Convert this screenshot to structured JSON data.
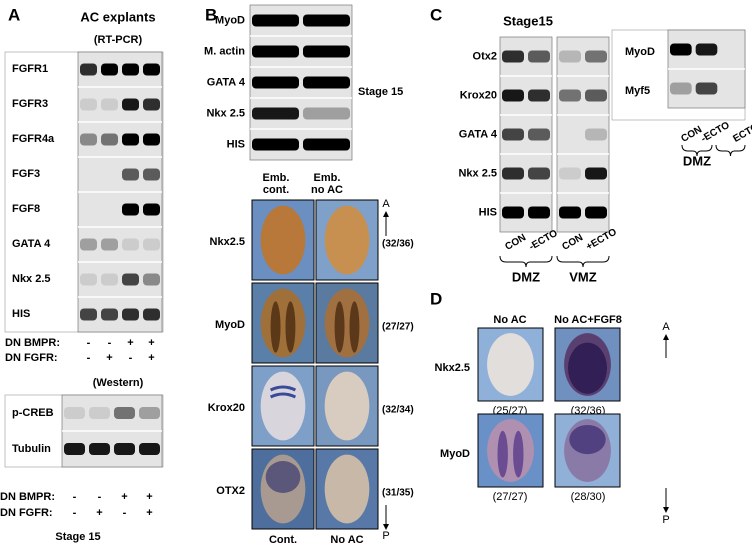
{
  "panel_a": {
    "label": "A",
    "title": "AC explants",
    "subtitle": "(RT-PCR)",
    "genes": [
      "FGFR1",
      "FGFR3",
      "FGFR4a",
      "FGF3",
      "FGF8",
      "GATA 4",
      "Nkx 2.5",
      "HIS"
    ],
    "conditions": [
      {
        "name": "DN BMPR:",
        "signs": [
          "-",
          "-",
          "+",
          "+"
        ]
      },
      {
        "name": "DN FGFR:",
        "signs": [
          "-",
          "+",
          "-",
          "+"
        ]
      }
    ],
    "western": {
      "title": "(Western)",
      "proteins": [
        "p-CREB",
        "Tubulin"
      ],
      "conditions": [
        {
          "name": "DN BMPR:",
          "signs": [
            "-",
            "-",
            "+",
            "+"
          ]
        },
        {
          "name": "DN FGFR:",
          "signs": [
            "-",
            "+",
            "-",
            "+"
          ]
        }
      ],
      "stage": "Stage 15"
    }
  },
  "panel_b": {
    "label": "B",
    "genes": [
      "MyoD",
      "M. actin",
      "GATA 4",
      "Nkx 2.5",
      "HIS"
    ],
    "stage": "Stage 15",
    "lanes": [
      [
        "Emb.",
        "cont."
      ],
      [
        "Emb.",
        "no AC"
      ]
    ],
    "embryo_rows": [
      {
        "gene": "Nkx2.5",
        "ratio": "(32/36)"
      },
      {
        "gene": "MyoD",
        "ratio": "(27/27)"
      },
      {
        "gene": "Krox20",
        "ratio": "(32/34)"
      },
      {
        "gene": "OTX2",
        "ratio": "(31/35)"
      }
    ],
    "columns": [
      "Cont.",
      "No AC"
    ],
    "axis": [
      "A",
      "P"
    ]
  },
  "panel_c": {
    "label": "C",
    "stage": "Stage15",
    "genes": [
      "Otx2",
      "Krox20",
      "GATA 4",
      "Nkx 2.5",
      "HIS"
    ],
    "gels": [
      {
        "lanes": [
          "CON",
          "-ECTO"
        ],
        "group": "DMZ"
      },
      {
        "lanes": [
          "CON",
          "+ECTO"
        ],
        "group": "VMZ"
      }
    ],
    "right": {
      "genes": [
        "MyoD",
        "Myf5"
      ],
      "lanes": [
        "CON",
        "-ECTO",
        "ECTO"
      ],
      "group": "DMZ"
    }
  },
  "panel_d": {
    "label": "D",
    "columns": [
      "No AC",
      "No AC+FGF8"
    ],
    "rows": [
      {
        "gene": "Nkx2.5",
        "ratios": [
          "(25/27)",
          "(32/36)"
        ]
      },
      {
        "gene": "MyoD",
        "ratios": [
          "(27/27)",
          "(28/30)"
        ]
      }
    ],
    "axis": [
      "A",
      "P"
    ]
  }
}
